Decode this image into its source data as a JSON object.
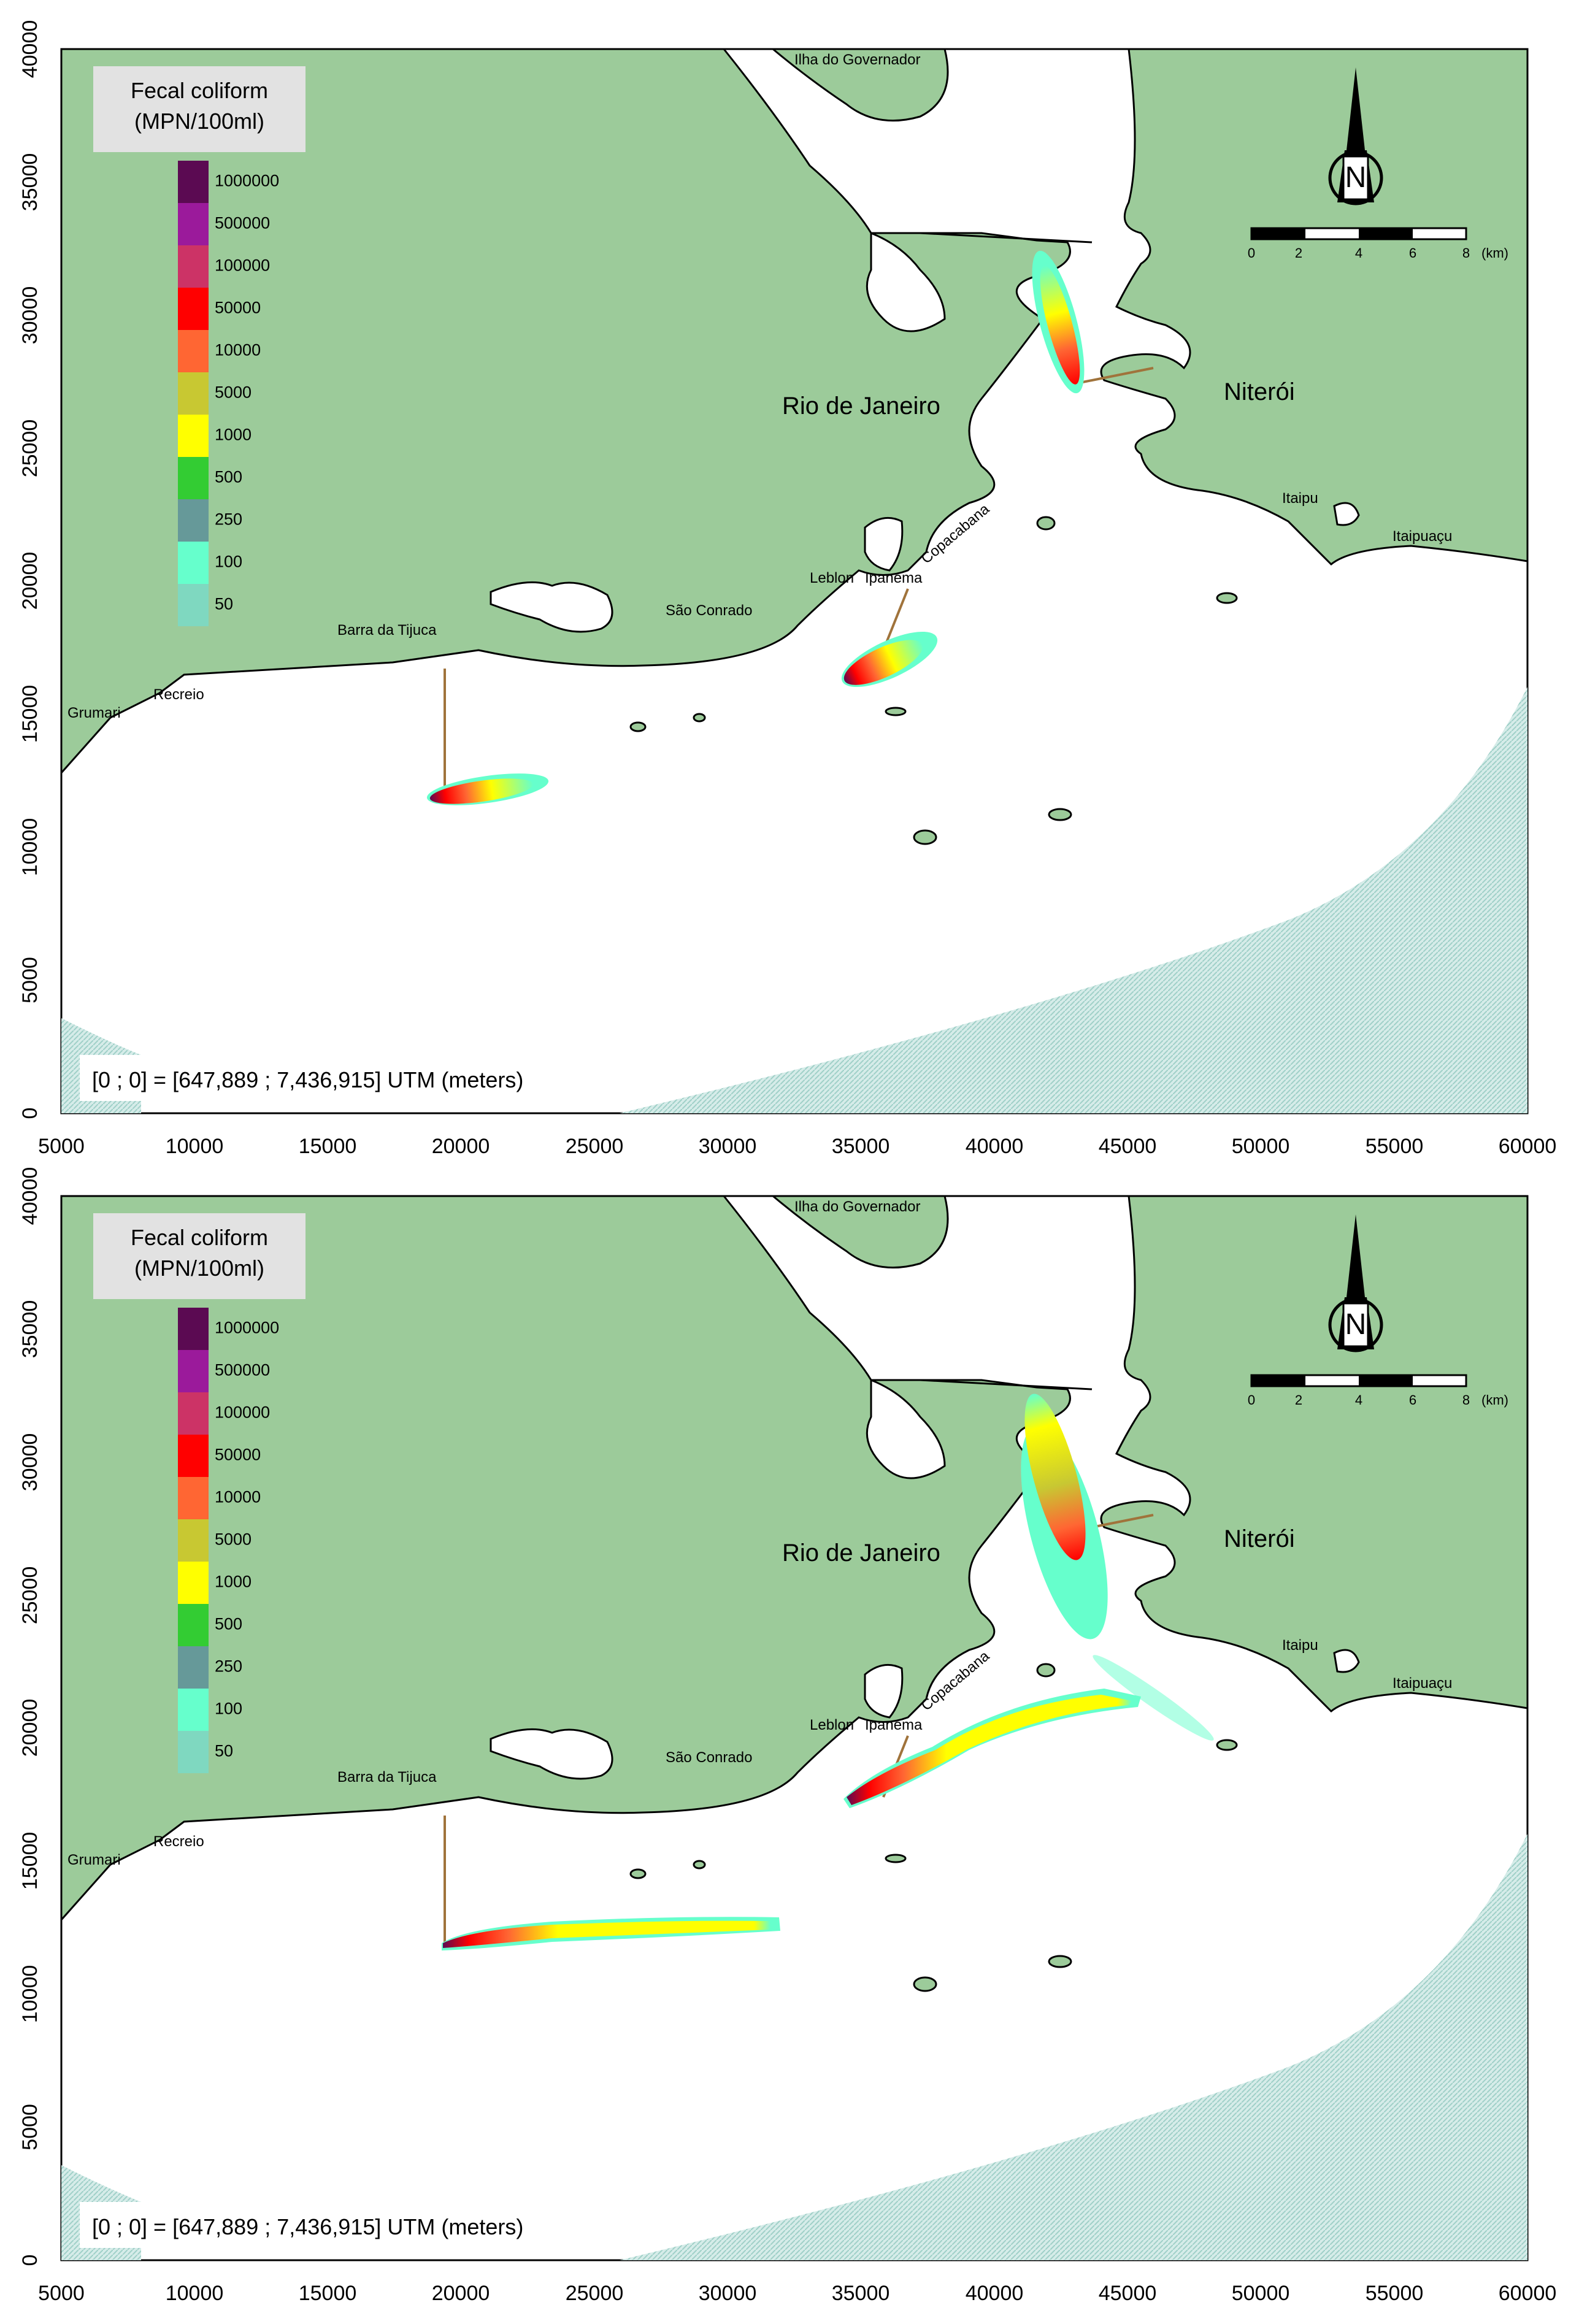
{
  "maps": [
    {
      "id": "top",
      "x_ticks": [
        "5000",
        "10000",
        "15000",
        "20000",
        "25000",
        "30000",
        "35000",
        "40000",
        "45000",
        "50000",
        "55000",
        "60000"
      ],
      "y_ticks": [
        "0",
        "5000",
        "10000",
        "15000",
        "20000",
        "25000",
        "30000",
        "35000",
        "40000"
      ],
      "legend": {
        "title_line1": "Fecal coliform",
        "title_line2": "(MPN/100ml)",
        "classes": [
          {
            "label": "1000000",
            "color": "#5b0a52"
          },
          {
            "label": "500000",
            "color": "#9b1a9b"
          },
          {
            "label": "100000",
            "color": "#cc3366"
          },
          {
            "label": "50000",
            "color": "#ff0000"
          },
          {
            "label": "10000",
            "color": "#ff6633"
          },
          {
            "label": "5000",
            "color": "#c8c832"
          },
          {
            "label": "1000",
            "color": "#ffff00"
          },
          {
            "label": "500",
            "color": "#33cc33"
          },
          {
            "label": "250",
            "color": "#669999"
          },
          {
            "label": "100",
            "color": "#66ffcc"
          },
          {
            "label": "50",
            "color": "#7fd8c0"
          }
        ]
      },
      "places": {
        "ilha": "Ilha do Governador",
        "rio": "Rio de Janeiro",
        "niteroi": "Niterói",
        "barra": "Barra da Tijuca",
        "recreio": "Recreio",
        "grumari": "Grumari",
        "sao_conrado": "São Conrado",
        "leblon": "Leblon",
        "ipanema": "Ipanema",
        "copacabana": "Copacabana",
        "itaipu": "Itaipu",
        "itaipuacu": "Itaipuaçu"
      },
      "scale_bar": {
        "ticks": [
          "0",
          "2",
          "4",
          "6",
          "8"
        ],
        "unit": "(km)"
      },
      "north_label": "N",
      "origin_note": "[0 ; 0] = [647,889  ; 7,436,915]  UTM (meters)"
    },
    {
      "id": "bottom",
      "x_ticks": [
        "5000",
        "10000",
        "15000",
        "20000",
        "25000",
        "30000",
        "35000",
        "40000",
        "45000",
        "50000",
        "55000",
        "60000"
      ],
      "y_ticks": [
        "0",
        "5000",
        "10000",
        "15000",
        "20000",
        "25000",
        "30000",
        "35000",
        "40000"
      ],
      "legend": {
        "title_line1": "Fecal coliform",
        "title_line2": "(MPN/100ml)",
        "classes": [
          {
            "label": "1000000",
            "color": "#5b0a52"
          },
          {
            "label": "500000",
            "color": "#9b1a9b"
          },
          {
            "label": "100000",
            "color": "#cc3366"
          },
          {
            "label": "50000",
            "color": "#ff0000"
          },
          {
            "label": "10000",
            "color": "#ff6633"
          },
          {
            "label": "5000",
            "color": "#c8c832"
          },
          {
            "label": "1000",
            "color": "#ffff00"
          },
          {
            "label": "500",
            "color": "#33cc33"
          },
          {
            "label": "250",
            "color": "#669999"
          },
          {
            "label": "100",
            "color": "#66ffcc"
          },
          {
            "label": "50",
            "color": "#7fd8c0"
          }
        ]
      },
      "places": {
        "ilha": "Ilha do Governador",
        "rio": "Rio de Janeiro",
        "niteroi": "Niterói",
        "barra": "Barra da Tijuca",
        "recreio": "Recreio",
        "grumari": "Grumari",
        "sao_conrado": "São Conrado",
        "leblon": "Leblon",
        "ipanema": "Ipanema",
        "copacabana": "Copacabana",
        "itaipu": "Itaipu",
        "itaipuacu": "Itaipuaçu"
      },
      "scale_bar": {
        "ticks": [
          "0",
          "2",
          "4",
          "6",
          "8"
        ],
        "unit": "(km)"
      },
      "north_label": "N",
      "origin_note": "[0 ; 0] = [647,889  ; 7,436,915]  UTM (meters)"
    }
  ]
}
